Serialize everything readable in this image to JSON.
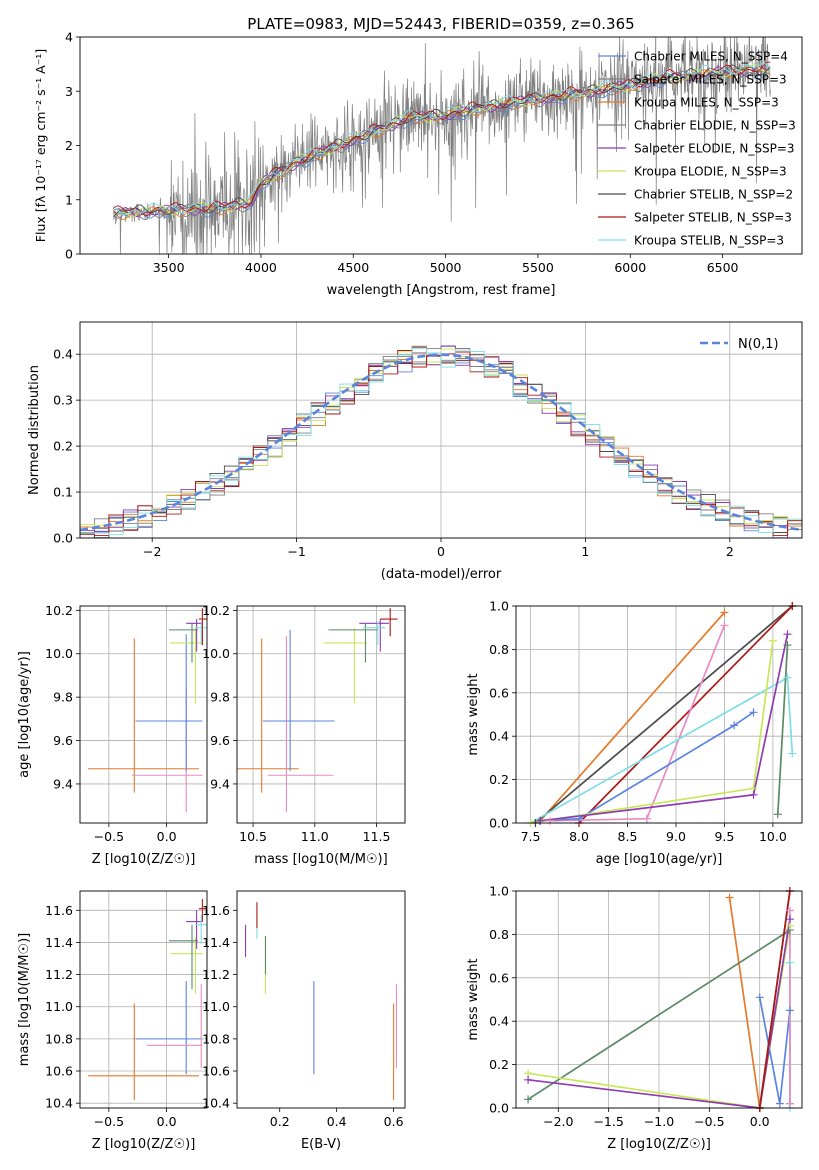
{
  "title": "PLATE=0983, MJD=52443, FIBERID=0359, z=0.365",
  "colors": {
    "chabrier_miles": "#5b84de",
    "salpeter_miles": "#7f7f7f",
    "kroupa_miles": "#e6792a",
    "chabrier_elodie": "#808080",
    "salpeter_elodie": "#8e3bb0",
    "kroupa_elodie": "#c8e85a",
    "chabrier_stelib": "#4a4a4a",
    "salpeter_stelib": "#b01818",
    "kroupa_stelib": "#7fdde6",
    "pink": "#e98ac3",
    "green": "#5a8a66",
    "normal": "#5b84de"
  },
  "chart_data": [
    {
      "type": "line",
      "title": "PLATE=0983, MJD=52443, FIBERID=0359, z=0.365",
      "xlabel": "wavelength [Angstrom, rest frame]",
      "ylabel": "Flux [fλ 10⁻¹⁷ erg cm⁻² s⁻¹ A⁻¹]",
      "xlim": [
        3020,
        6930
      ],
      "ylim": [
        0,
        4
      ],
      "xticks": [
        3500,
        4000,
        4500,
        5000,
        5500,
        6000,
        6500
      ],
      "yticks": [
        0,
        1,
        2,
        3,
        4
      ],
      "grid": false,
      "legend_position": "top-right",
      "continuum": {
        "x": [
          3200,
          3500,
          3800,
          3950,
          4000,
          4200,
          4500,
          4800,
          5000,
          5200,
          5500,
          5800,
          6000,
          6200,
          6500,
          6760
        ],
        "y": [
          0.75,
          0.8,
          0.85,
          0.95,
          1.3,
          1.7,
          2.1,
          2.5,
          2.55,
          2.7,
          2.85,
          3.0,
          3.1,
          3.25,
          3.35,
          3.4
        ]
      },
      "series": [
        {
          "name": "Chabrier MILES, N_SSP=4",
          "color_key": "chabrier_miles"
        },
        {
          "name": "Salpeter MILES, N_SSP=3",
          "color_key": "salpeter_miles"
        },
        {
          "name": "Kroupa MILES, N_SSP=3",
          "color_key": "kroupa_miles"
        },
        {
          "name": "Chabrier ELODIE, N_SSP=3",
          "color_key": "chabrier_elodie"
        },
        {
          "name": "Salpeter ELODIE, N_SSP=3",
          "color_key": "salpeter_elodie"
        },
        {
          "name": "Kroupa ELODIE, N_SSP=3",
          "color_key": "kroupa_elodie"
        },
        {
          "name": "Chabrier STELIB, N_SSP=2",
          "color_key": "chabrier_stelib"
        },
        {
          "name": "Salpeter STELIB, N_SSP=3",
          "color_key": "salpeter_stelib"
        },
        {
          "name": "Kroupa STELIB, N_SSP=3",
          "color_key": "kroupa_stelib"
        }
      ]
    },
    {
      "type": "line",
      "xlabel": "(data-model)/error",
      "ylabel": "Normed distribution",
      "xlim": [
        -2.5,
        2.5
      ],
      "ylim": [
        0,
        0.47
      ],
      "xticks": [
        -2,
        -1,
        0,
        1,
        2
      ],
      "yticks": [
        0.0,
        0.1,
        0.2,
        0.3,
        0.4
      ],
      "grid": true,
      "legend_position": "top-right",
      "legend": "N(0,1)",
      "normal_curve": {
        "mean": 0,
        "sigma": 1
      }
    },
    {
      "type": "scatter",
      "xlabel": "Z [log10(Z/Z☉)]",
      "ylabel": "age  [log10(age/yr)]",
      "xlim": [
        -0.75,
        0.35
      ],
      "ylim": [
        9.22,
        10.22
      ],
      "xticks": [
        -0.5,
        0.0
      ],
      "yticks": [
        9.4,
        9.6,
        9.8,
        10.0,
        10.2
      ],
      "grid": true,
      "points": [
        {
          "x": -0.28,
          "xerr": [
            0.4,
            0.56
          ],
          "y": 9.47,
          "yerr": [
            0.11,
            0.6
          ],
          "color_key": "kroupa_miles"
        },
        {
          "x": 0.17,
          "xerr": [
            0.47,
            0.14
          ],
          "y": 9.44,
          "yerr": [
            0.17,
            0.4
          ],
          "color_key": "pink"
        },
        {
          "x": 0.17,
          "xerr": [
            0.44,
            0.14
          ],
          "y": 9.69,
          "yerr": [
            0.23,
            0.4
          ],
          "color_key": "chabrier_miles"
        },
        {
          "x": 0.25,
          "xerr": [
            0.22,
            0.06
          ],
          "y": 10.05,
          "yerr": [
            0.28,
            0.07
          ],
          "color_key": "kroupa_elodie"
        },
        {
          "x": 0.22,
          "xerr": [
            0.2,
            0.05
          ],
          "y": 10.11,
          "yerr": [
            0.15,
            0.03
          ],
          "color_key": "green"
        },
        {
          "x": 0.26,
          "xerr": [
            0.09,
            0.05
          ],
          "y": 10.14,
          "yerr": [
            0.13,
            0.02
          ],
          "color_key": "salpeter_elodie"
        },
        {
          "x": 0.3,
          "xerr": [
            0.05,
            0.05
          ],
          "y": 10.12,
          "yerr": [
            0.08,
            0.03
          ],
          "color_key": "kroupa_stelib"
        },
        {
          "x": 0.31,
          "xerr": [
            0.03,
            0.04
          ],
          "y": 10.16,
          "yerr": [
            0.12,
            0.05
          ],
          "color_key": "salpeter_stelib"
        }
      ]
    },
    {
      "type": "scatter",
      "xlabel": "mass [log10(M/M☉)]",
      "xlim": [
        10.37,
        11.73
      ],
      "ylim": [
        9.22,
        10.22
      ],
      "xticks": [
        10.5,
        11.0,
        11.5
      ],
      "yticks": [
        9.4,
        9.6,
        9.8,
        10.0,
        10.2
      ],
      "grid": true,
      "points": [
        {
          "x": 10.57,
          "xerr": [
            0.2,
            0.3
          ],
          "y": 9.47,
          "yerr": [
            0.11,
            0.6
          ],
          "color_key": "kroupa_miles"
        },
        {
          "x": 10.77,
          "xerr": [
            0.15,
            0.38
          ],
          "y": 9.44,
          "yerr": [
            0.17,
            0.64
          ],
          "color_key": "pink"
        },
        {
          "x": 10.8,
          "xerr": [
            0.22,
            0.36
          ],
          "y": 9.69,
          "yerr": [
            0.23,
            0.42
          ],
          "color_key": "chabrier_miles"
        },
        {
          "x": 11.32,
          "xerr": [
            0.25,
            0.1
          ],
          "y": 10.05,
          "yerr": [
            0.28,
            0.07
          ],
          "color_key": "kroupa_elodie"
        },
        {
          "x": 11.41,
          "xerr": [
            0.3,
            0.1
          ],
          "y": 10.11,
          "yerr": [
            0.15,
            0.03
          ],
          "color_key": "green"
        },
        {
          "x": 11.53,
          "xerr": [
            0.17,
            0.07
          ],
          "y": 10.14,
          "yerr": [
            0.13,
            0.02
          ],
          "color_key": "salpeter_elodie"
        },
        {
          "x": 11.51,
          "xerr": [
            0.12,
            0.06
          ],
          "y": 10.12,
          "yerr": [
            0.08,
            0.03
          ],
          "color_key": "kroupa_stelib"
        },
        {
          "x": 11.61,
          "xerr": [
            0.08,
            0.06
          ],
          "y": 10.16,
          "yerr": [
            0.08,
            0.05
          ],
          "color_key": "salpeter_stelib"
        }
      ]
    },
    {
      "type": "line",
      "xlabel": "age  [log10(age/yr)]",
      "ylabel": "mass weight",
      "xlim": [
        7.35,
        10.3
      ],
      "ylim": [
        0,
        1
      ],
      "xticks": [
        7.5,
        8.0,
        8.5,
        9.0,
        9.5,
        10.0
      ],
      "yticks": [
        0.0,
        0.2,
        0.4,
        0.6,
        0.8,
        1.0
      ],
      "grid": true,
      "series": [
        {
          "color_key": "kroupa_miles",
          "x": [
            7.6,
            9.5
          ],
          "y": [
            0.01,
            0.97
          ]
        },
        {
          "color_key": "chabrier_stelib",
          "x": [
            7.55,
            10.2
          ],
          "y": [
            0.0,
            1.0
          ]
        },
        {
          "color_key": "salpeter_stelib",
          "x": [
            8.0,
            10.2
          ],
          "y": [
            0.0,
            1.0
          ]
        },
        {
          "color_key": "pink",
          "x": [
            7.7,
            8.7,
            9.5
          ],
          "y": [
            0.01,
            0.02,
            0.91
          ]
        },
        {
          "color_key": "chabrier_miles",
          "x": [
            7.6,
            8.0,
            9.6,
            9.8
          ],
          "y": [
            0.01,
            0.02,
            0.45,
            0.51
          ]
        },
        {
          "color_key": "kroupa_stelib",
          "x": [
            7.5,
            10.15,
            10.2
          ],
          "y": [
            0.0,
            0.67,
            0.32
          ]
        },
        {
          "color_key": "kroupa_elodie",
          "x": [
            7.5,
            9.8,
            10.0
          ],
          "y": [
            0.0,
            0.16,
            0.84
          ]
        },
        {
          "color_key": "salpeter_elodie",
          "x": [
            7.6,
            9.8,
            10.15
          ],
          "y": [
            0.01,
            0.13,
            0.87
          ]
        },
        {
          "color_key": "green",
          "x": [
            10.05,
            10.15
          ],
          "y": [
            0.04,
            0.82
          ]
        }
      ]
    },
    {
      "type": "scatter",
      "xlabel": "Z [log10(Z/Z☉)]",
      "ylabel": "mass [log10(M/M☉)]",
      "xlim": [
        -0.75,
        0.35
      ],
      "ylim": [
        10.37,
        11.72
      ],
      "xticks": [
        -0.5,
        0.0
      ],
      "yticks": [
        10.4,
        10.6,
        10.8,
        11.0,
        11.2,
        11.4,
        11.6
      ],
      "grid": true,
      "points": [
        {
          "x": -0.28,
          "xerr": [
            0.4,
            0.56
          ],
          "y": 10.57,
          "yerr": [
            0.15,
            0.45
          ],
          "color_key": "kroupa_miles"
        },
        {
          "x": 0.17,
          "xerr": [
            0.44,
            0.14
          ],
          "y": 10.8,
          "yerr": [
            0.22,
            0.36
          ],
          "color_key": "chabrier_miles"
        },
        {
          "x": 0.3,
          "xerr": [
            0.47,
            0.01
          ],
          "y": 10.76,
          "yerr": [
            0.14,
            0.38
          ],
          "color_key": "pink"
        },
        {
          "x": 0.25,
          "xerr": [
            0.22,
            0.06
          ],
          "y": 11.33,
          "yerr": [
            0.25,
            0.1
          ],
          "color_key": "kroupa_elodie"
        },
        {
          "x": 0.22,
          "xerr": [
            0.2,
            0.05
          ],
          "y": 11.41,
          "yerr": [
            0.3,
            0.1
          ],
          "color_key": "green"
        },
        {
          "x": 0.26,
          "xerr": [
            0.09,
            0.05
          ],
          "y": 11.53,
          "yerr": [
            0.17,
            0.07
          ],
          "color_key": "salpeter_elodie"
        },
        {
          "x": 0.3,
          "xerr": [
            0.05,
            0.05
          ],
          "y": 11.51,
          "yerr": [
            0.12,
            0.06
          ],
          "color_key": "kroupa_stelib"
        },
        {
          "x": 0.31,
          "xerr": [
            0.03,
            0.04
          ],
          "y": 11.61,
          "yerr": [
            0.08,
            0.06
          ],
          "color_key": "salpeter_stelib"
        }
      ]
    },
    {
      "type": "scatter",
      "xlabel": "E(B-V)",
      "xlim": [
        0.05,
        0.64
      ],
      "ylim": [
        10.37,
        11.72
      ],
      "xticks": [
        0.2,
        0.4,
        0.6
      ],
      "yticks": [
        10.4,
        10.6,
        10.8,
        11.0,
        11.2,
        11.4,
        11.6
      ],
      "grid": false,
      "points": [
        {
          "x": 0.6,
          "y": 10.57,
          "yerr": [
            0.15,
            0.45
          ],
          "color_key": "kroupa_miles"
        },
        {
          "x": 0.32,
          "y": 10.8,
          "yerr": [
            0.22,
            0.36
          ],
          "color_key": "chabrier_miles"
        },
        {
          "x": 0.61,
          "y": 10.76,
          "yerr": [
            0.14,
            0.38
          ],
          "color_key": "pink"
        },
        {
          "x": 0.15,
          "y": 11.28,
          "yerr": [
            0.2,
            0.15
          ],
          "color_key": "kroupa_elodie"
        },
        {
          "x": 0.15,
          "y": 11.38,
          "yerr": [
            0.18,
            0.06
          ],
          "color_key": "green"
        },
        {
          "x": 0.08,
          "y": 11.45,
          "yerr": [
            0.14,
            0.06
          ],
          "color_key": "salpeter_elodie"
        },
        {
          "x": 0.12,
          "y": 11.5,
          "yerr": [
            0.08,
            0.06
          ],
          "color_key": "kroupa_stelib"
        },
        {
          "x": 0.12,
          "y": 11.55,
          "yerr": [
            0.06,
            0.1
          ],
          "color_key": "salpeter_stelib"
        }
      ]
    },
    {
      "type": "line",
      "xlabel": "Z [log10(Z/Z☉)]",
      "ylabel": "mass weight",
      "xlim": [
        -2.42,
        0.42
      ],
      "ylim": [
        0,
        1
      ],
      "xticks": [
        -2.0,
        -1.5,
        -1.0,
        -0.5,
        0.0
      ],
      "yticks": [
        0.0,
        0.2,
        0.4,
        0.6,
        0.8,
        1.0
      ],
      "grid": true,
      "series": [
        {
          "color_key": "kroupa_miles",
          "x": [
            -0.3,
            0.0
          ],
          "y": [
            0.97,
            0.0
          ]
        },
        {
          "color_key": "green",
          "x": [
            -2.3,
            0.3
          ],
          "y": [
            0.04,
            0.82
          ]
        },
        {
          "color_key": "kroupa_elodie",
          "x": [
            -2.3,
            0.0,
            0.3
          ],
          "y": [
            0.16,
            0.0,
            0.84
          ]
        },
        {
          "color_key": "salpeter_elodie",
          "x": [
            -2.3,
            0.0,
            0.3
          ],
          "y": [
            0.13,
            0.0,
            0.87
          ]
        },
        {
          "color_key": "chabrier_miles",
          "x": [
            0.0,
            0.2,
            0.3,
            0.3
          ],
          "y": [
            0.51,
            0.02,
            0.45,
            0.02
          ]
        },
        {
          "color_key": "chabrier_stelib",
          "x": [
            0.0,
            0.3
          ],
          "y": [
            0.0,
            1.0
          ]
        },
        {
          "color_key": "salpeter_stelib",
          "x": [
            0.0,
            0.3
          ],
          "y": [
            0.0,
            1.0
          ]
        },
        {
          "color_key": "kroupa_stelib",
          "x": [
            0.3,
            0.3
          ],
          "y": [
            0.67,
            0.0
          ]
        },
        {
          "color_key": "pink",
          "x": [
            0.3,
            0.3
          ],
          "y": [
            0.91,
            0.02
          ]
        }
      ]
    }
  ]
}
